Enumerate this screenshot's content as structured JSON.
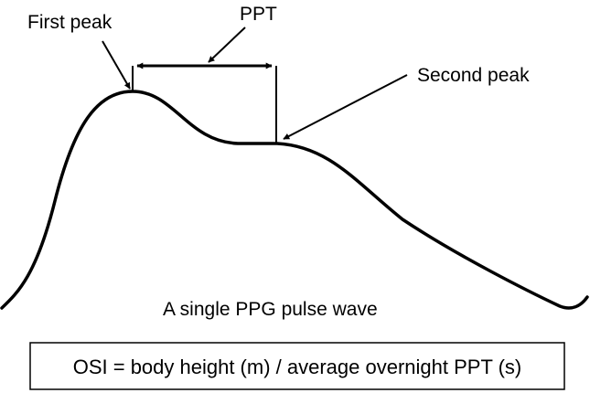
{
  "labels": {
    "first_peak": "First peak",
    "ppt": "PPT",
    "second_peak": "Second peak",
    "caption": "A single PPG pulse wave"
  },
  "formula": {
    "text": "OSI = body height (m) / average overnight PPT (s)"
  },
  "colors": {
    "stroke": "#000000",
    "background": "#ffffff"
  }
}
